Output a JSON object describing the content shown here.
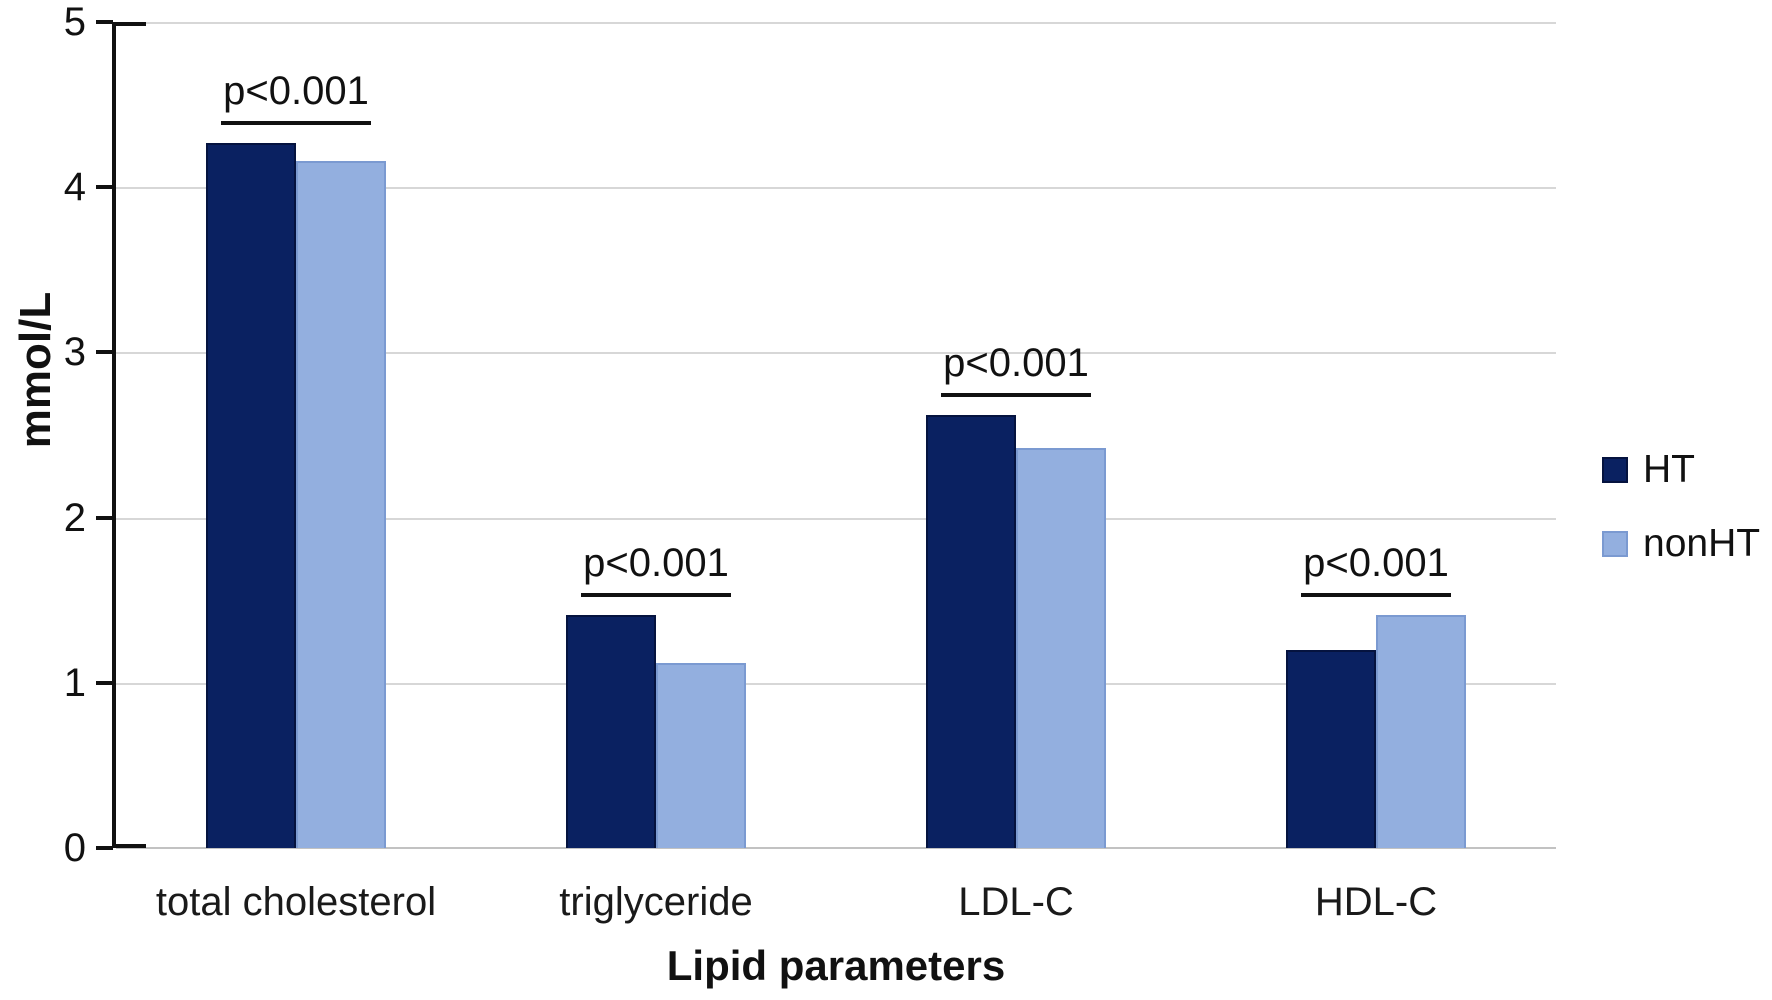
{
  "chart_data": {
    "type": "bar",
    "title": "",
    "categories": [
      "total cholesterol",
      "triglyceride",
      "LDL-C",
      "HDL-C"
    ],
    "series": [
      {
        "name": "HT",
        "color": "#0a2161",
        "border": "#05133f",
        "values": [
          4.27,
          1.41,
          2.62,
          1.2
        ]
      },
      {
        "name": "nonHT",
        "color": "#93afdf",
        "border": "#7b9ad1",
        "values": [
          4.16,
          1.12,
          2.42,
          1.41
        ]
      }
    ],
    "annotations": [
      {
        "group": "total cholesterol",
        "label": "p<0.001"
      },
      {
        "group": "triglyceride",
        "label": "p<0.001"
      },
      {
        "group": "LDL-C",
        "label": "p<0.001"
      },
      {
        "group": "HDL-C",
        "label": "p<0.001"
      }
    ],
    "xlabel": "Lipid parameters",
    "ylabel": "mmol/L",
    "ylim": [
      0,
      5
    ],
    "y_ticks": [
      "5",
      "4",
      "3",
      "2",
      "1",
      "0"
    ],
    "grid": true,
    "legend_position": "right-middle"
  }
}
